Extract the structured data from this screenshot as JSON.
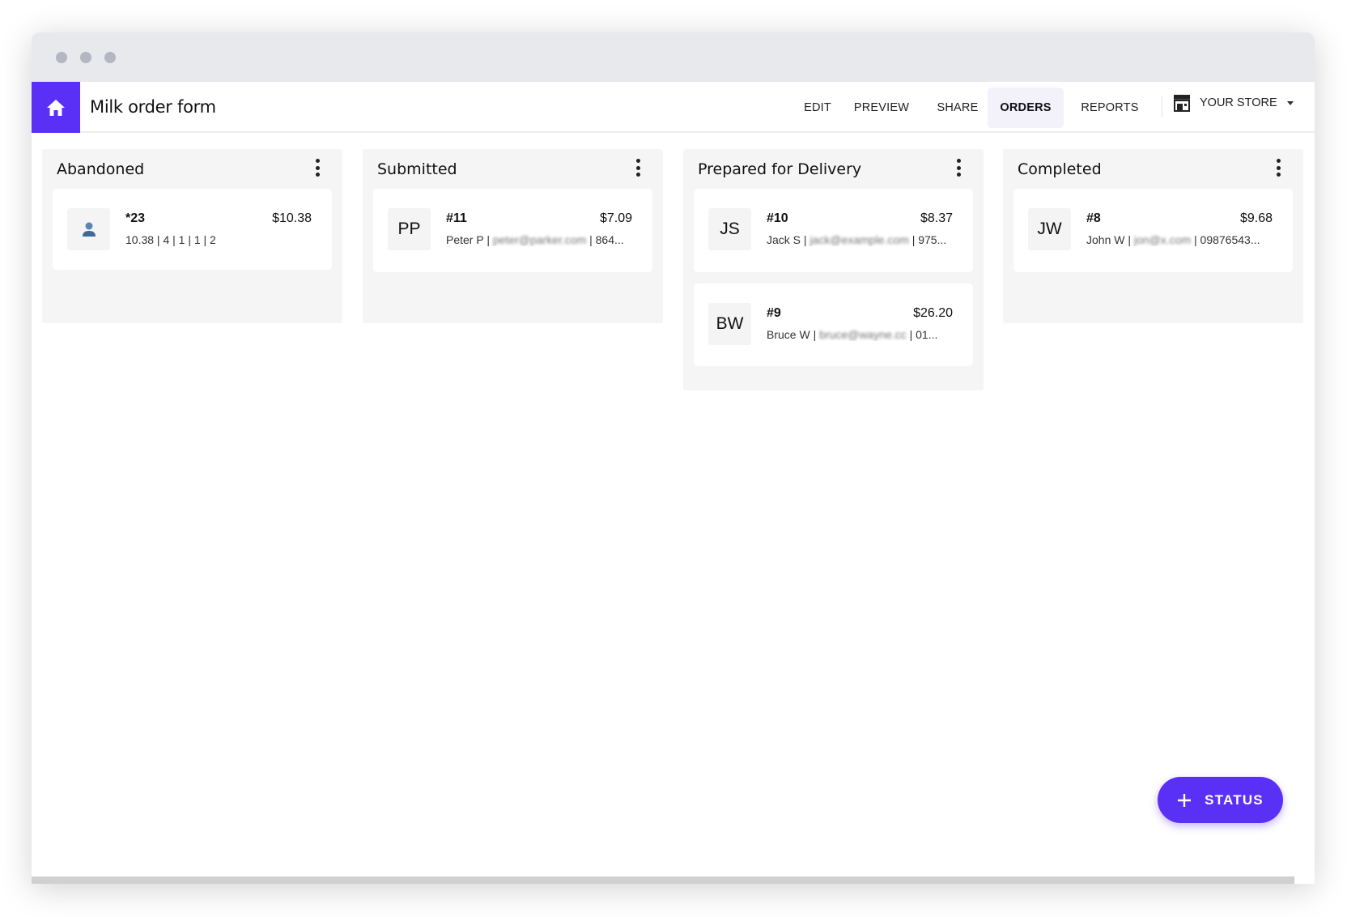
{
  "app": {
    "title": "Milk order form"
  },
  "nav": {
    "items": [
      {
        "label": "EDIT"
      },
      {
        "label": "PREVIEW"
      },
      {
        "label": "SHARE"
      },
      {
        "label": "ORDERS",
        "active": true
      },
      {
        "label": "REPORTS"
      }
    ],
    "store_label": "YOUR STORE"
  },
  "colors": {
    "accent": "#5b30f6",
    "column_bg": "#f5f5f5"
  },
  "columns": [
    {
      "title": "Abandoned",
      "cards": [
        {
          "avatar": "person-icon",
          "number": "*23",
          "price": "$10.38",
          "name": "10.38 | 4 | 1 | 1 | 2",
          "email": "",
          "rest": ""
        }
      ]
    },
    {
      "title": "Submitted",
      "cards": [
        {
          "avatar": "PP",
          "number": "#11",
          "price": "$7.09",
          "name": "Peter P | ",
          "email": "peter@parker.com",
          "rest": " | 864..."
        }
      ]
    },
    {
      "title": "Prepared for Delivery",
      "cards": [
        {
          "avatar": "JS",
          "number": "#10",
          "price": "$8.37",
          "name": "Jack S | ",
          "email": "jack@example.com",
          "rest": " | 975..."
        },
        {
          "avatar": "BW",
          "number": "#9",
          "price": "$26.20",
          "name": "Bruce W | ",
          "email": "bruce@wayne.cc",
          "rest": " | 01..."
        }
      ]
    },
    {
      "title": "Completed",
      "cards": [
        {
          "avatar": "JW",
          "number": "#8",
          "price": "$9.68",
          "name": "John W | ",
          "email": "jon@x.com",
          "rest": " | 09876543..."
        }
      ]
    }
  ],
  "fab": {
    "label": "STATUS",
    "icon": "plus-icon"
  }
}
